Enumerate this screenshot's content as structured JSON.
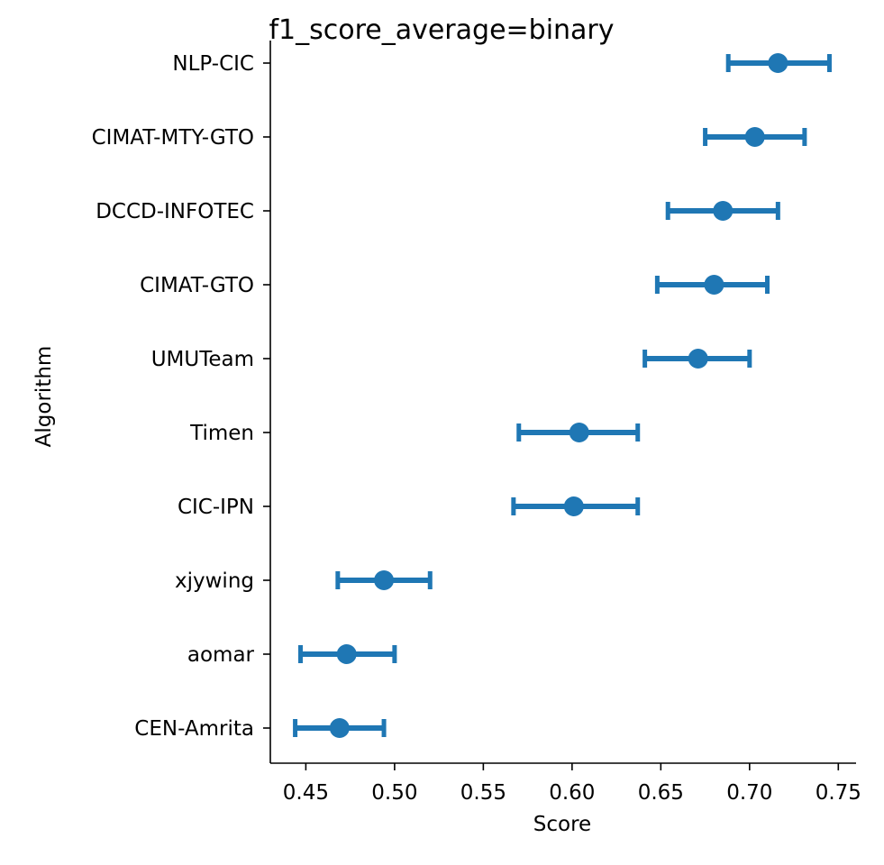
{
  "chart_data": {
    "type": "scatter",
    "subtype": "point-with-errorbars",
    "title": "f1_score_average=binary",
    "xlabel": "Score",
    "ylabel": "Algorithm",
    "xlim": [
      0.43,
      0.76
    ],
    "xticks": [
      "0.45",
      "0.50",
      "0.55",
      "0.60",
      "0.65",
      "0.70",
      "0.75"
    ],
    "color": "#1f77b4",
    "grid": false,
    "categories": [
      "NLP-CIC",
      "CIMAT-MTY-GTO",
      "DCCD-INFOTEC",
      "CIMAT-GTO",
      "UMUTeam",
      "Timen",
      "CIC-IPN",
      "xjywing",
      "aomar",
      "CEN-Amrita"
    ],
    "points": [
      {
        "label": "NLP-CIC",
        "value": 0.716,
        "low": 0.688,
        "high": 0.745
      },
      {
        "label": "CIMAT-MTY-GTO",
        "value": 0.703,
        "low": 0.675,
        "high": 0.731
      },
      {
        "label": "DCCD-INFOTEC",
        "value": 0.685,
        "low": 0.654,
        "high": 0.716
      },
      {
        "label": "CIMAT-GTO",
        "value": 0.68,
        "low": 0.648,
        "high": 0.71
      },
      {
        "label": "UMUTeam",
        "value": 0.671,
        "low": 0.641,
        "high": 0.7
      },
      {
        "label": "Timen",
        "value": 0.604,
        "low": 0.57,
        "high": 0.637
      },
      {
        "label": "CIC-IPN",
        "value": 0.601,
        "low": 0.567,
        "high": 0.637
      },
      {
        "label": "xjywing",
        "value": 0.494,
        "low": 0.468,
        "high": 0.52
      },
      {
        "label": "aomar",
        "value": 0.473,
        "low": 0.447,
        "high": 0.5
      },
      {
        "label": "CEN-Amrita",
        "value": 0.469,
        "low": 0.444,
        "high": 0.494
      }
    ]
  }
}
